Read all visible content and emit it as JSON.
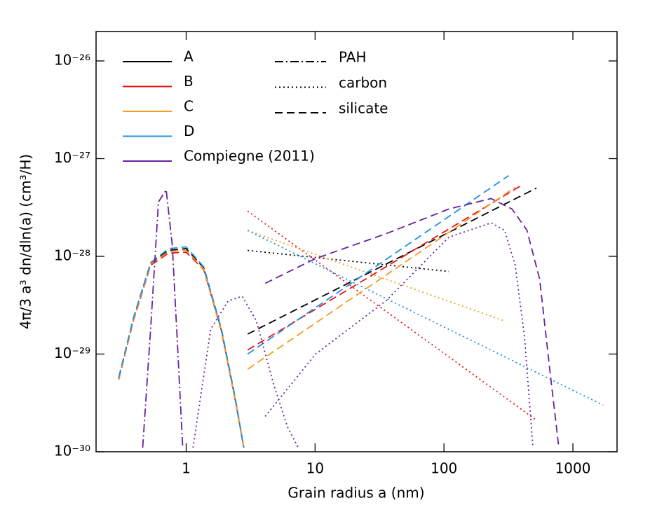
{
  "chart_data": {
    "type": "line",
    "x_label": "Grain radius a (nm)",
    "y_label": "4π/3 a³ dn/dln(a) (cm³/H)",
    "xscale": "log",
    "yscale": "log",
    "xlim": [
      0.2,
      2200
    ],
    "ylim": [
      1e-30,
      2e-26
    ],
    "xticks": [
      1,
      10,
      100,
      1000
    ],
    "yticks": [
      {
        "value": 1e-30,
        "label": "10⁻³⁰"
      },
      {
        "value": 1e-29,
        "label": "10⁻²⁹"
      },
      {
        "value": 1e-28,
        "label": "10⁻²⁸"
      },
      {
        "value": 1e-27,
        "label": "10⁻²⁷"
      },
      {
        "value": 1e-26,
        "label": "10⁻²⁶"
      }
    ],
    "line_styles": [
      {
        "name": "PAH",
        "dash": "dashdot"
      },
      {
        "name": "carbon",
        "dash": "dotted"
      },
      {
        "name": "silicate",
        "dash": "dashed"
      }
    ],
    "series": [
      {
        "name": "A",
        "color": "#000000",
        "curves": [
          {
            "style": "dashed",
            "x": [
              0.3,
              0.39,
              0.53,
              0.73,
              1,
              1.37,
              1.87,
              2.4,
              2.8
            ],
            "values": [
              5.7e-30,
              2.3e-29,
              8.5e-29,
              1.15e-28,
              1.2e-28,
              7.6e-29,
              1.8e-29,
              3.5e-30,
              1.1e-30
            ]
          },
          {
            "style": "dotted",
            "x": [
              3,
              109
            ],
            "values": [
              1.15e-28,
              7e-29
            ]
          },
          {
            "style": "dashed",
            "x": [
              3,
              522
            ],
            "values": [
              1.6e-29,
              5e-28
            ]
          }
        ]
      },
      {
        "name": "B",
        "color": "#e8141c",
        "curves": [
          {
            "style": "dashed",
            "x": [
              0.3,
              0.39,
              0.53,
              0.73,
              1,
              1.37,
              1.87,
              2.4,
              2.8
            ],
            "values": [
              5.5e-30,
              2.2e-29,
              8.1e-29,
              1.08e-28,
              1.1e-28,
              7.3e-29,
              1.75e-29,
              3.4e-30,
              1.1e-30
            ]
          },
          {
            "style": "dotted",
            "x": [
              3,
              522
            ],
            "values": [
              2.9e-28,
              2.1e-30
            ]
          },
          {
            "style": "dashed",
            "x": [
              3,
              406
            ],
            "values": [
              1.1e-29,
              5.4e-28
            ]
          }
        ]
      },
      {
        "name": "C",
        "color": "#f59a23",
        "curves": [
          {
            "style": "dashed",
            "x": [
              0.3,
              0.39,
              0.53,
              0.73,
              1,
              1.37,
              1.87,
              2.4,
              2.8
            ],
            "values": [
              5.6e-30,
              2.25e-29,
              8.3e-29,
              1.12e-28,
              1.15e-28,
              7.4e-29,
              1.78e-29,
              3.45e-30,
              1.1e-30
            ]
          },
          {
            "style": "dotted",
            "x": [
              3,
              290
            ],
            "values": [
              1.84e-28,
              2.2e-29
            ]
          },
          {
            "style": "dashed",
            "x": [
              3,
              357
            ],
            "values": [
              7e-30,
              5.1e-28
            ]
          }
        ]
      },
      {
        "name": "D",
        "color": "#1e90e0",
        "curves": [
          {
            "style": "dashed",
            "x": [
              0.3,
              0.39,
              0.53,
              0.73,
              1,
              1.37,
              1.87,
              2.4,
              2.8
            ],
            "values": [
              5.8e-30,
              2.35e-29,
              8.6e-29,
              1.2e-28,
              1.25e-28,
              7.8e-29,
              1.85e-29,
              3.6e-30,
              1.1e-30
            ]
          },
          {
            "style": "dotted",
            "x": [
              3,
              1713
            ],
            "values": [
              1.84e-28,
              3e-30
            ]
          },
          {
            "style": "dashed",
            "x": [
              3,
              317
            ],
            "values": [
              1e-29,
              6.7e-28
            ]
          }
        ]
      },
      {
        "name": "Compiegne (2011)",
        "color": "#6a1fa0",
        "curves": [
          {
            "style": "dashdot",
            "x": [
              0.46,
              0.53,
              0.61,
              0.7,
              0.78,
              0.86,
              0.94
            ],
            "values": [
              1.1e-30,
              1.8e-29,
              3.6e-28,
              4.8e-28,
              1.3e-28,
              1.1e-29,
              1.1e-30
            ]
          },
          {
            "style": "dotted",
            "x": [
              1.13,
              1.55,
              2.12,
              2.72,
              3.5,
              4.77,
              6.1,
              7.4
            ],
            "values": [
              1.1e-30,
              1.8e-29,
              3.5e-29,
              3.9e-29,
              2.2e-29,
              4.9e-30,
              1.8e-30,
              1.1e-30
            ]
          },
          {
            "style": "dotted",
            "x": [
              4.1,
              10.1,
              35.4,
              109,
              232,
              295,
              357,
              421,
              490
            ],
            "values": [
              2.3e-30,
              1e-29,
              3.5e-29,
              1.57e-28,
              2.2e-28,
              1.85e-28,
              8.1e-29,
              1.5e-29,
              1.1e-30
            ]
          },
          {
            "style": "dashed",
            "x": [
              4.1,
              10.1,
              35.4,
              109,
              232,
              337,
              440,
              553,
              672,
              778
            ],
            "values": [
              5.3e-29,
              9.5e-29,
              1.7e-28,
              3.05e-28,
              3.9e-28,
              3.05e-28,
              1.85e-28,
              5.8e-29,
              5.8e-30,
              1.1e-30
            ]
          }
        ]
      }
    ]
  }
}
